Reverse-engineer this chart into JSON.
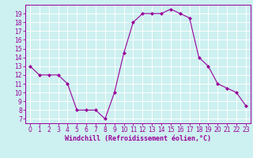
{
  "hours": [
    0,
    1,
    2,
    3,
    4,
    5,
    6,
    7,
    8,
    9,
    10,
    11,
    12,
    13,
    14,
    15,
    16,
    17,
    18,
    19,
    20,
    21,
    22,
    23
  ],
  "values": [
    13,
    12,
    12,
    12,
    11,
    8,
    8,
    8,
    7,
    10,
    14.5,
    18,
    19,
    19,
    19,
    19.5,
    19,
    18.5,
    14,
    13,
    11,
    10.5,
    10,
    8.5
  ],
  "line_color": "#990099",
  "marker": "D",
  "marker_size": 2.0,
  "bg_color": "#cdf0f0",
  "grid_color": "#ffffff",
  "xlabel": "Windchill (Refroidissement éolien,°C)",
  "xlabel_color": "#990099",
  "tick_color": "#990099",
  "spine_color": "#990099",
  "ylim": [
    6.5,
    20.0
  ],
  "yticks": [
    7,
    8,
    9,
    10,
    11,
    12,
    13,
    14,
    15,
    16,
    17,
    18,
    19
  ],
  "xlim": [
    -0.5,
    23.5
  ],
  "tick_fontsize": 5.5,
  "xlabel_fontsize": 6.0
}
